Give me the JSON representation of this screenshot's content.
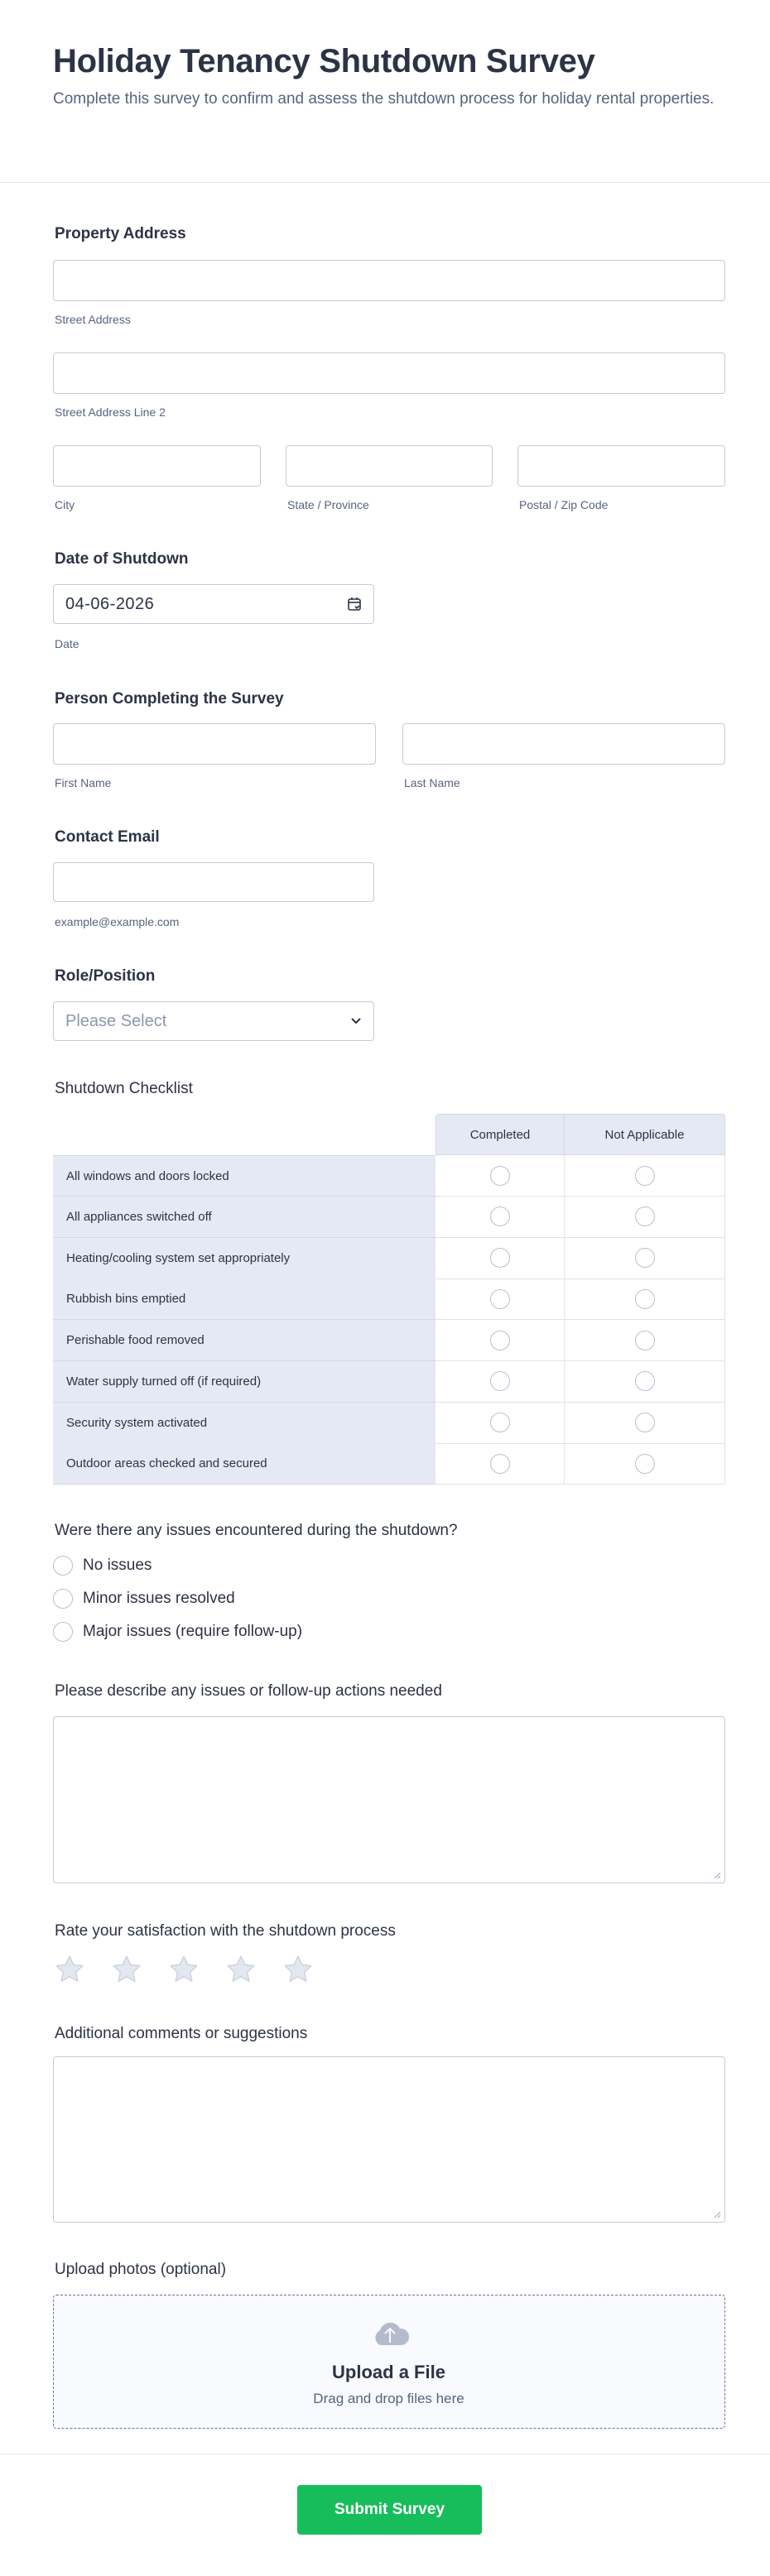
{
  "header": {
    "title": "Holiday Tenancy Shutdown Survey",
    "description": "Complete this survey to confirm and assess the shutdown process for holiday rental properties."
  },
  "address": {
    "label": "Property Address",
    "street": {
      "value": "",
      "sublabel": "Street Address"
    },
    "street2": {
      "value": "",
      "sublabel": "Street Address Line 2"
    },
    "city": {
      "value": "",
      "sublabel": "City"
    },
    "state": {
      "value": "",
      "sublabel": "State / Province"
    },
    "postal": {
      "value": "",
      "sublabel": "Postal / Zip Code"
    }
  },
  "date": {
    "label": "Date of Shutdown",
    "value": "04-06-2026",
    "sublabel": "Date",
    "icon": "calendar-icon"
  },
  "person": {
    "label": "Person Completing the Survey",
    "first": {
      "value": "",
      "sublabel": "First Name"
    },
    "last": {
      "value": "",
      "sublabel": "Last Name"
    }
  },
  "email": {
    "label": "Contact Email",
    "value": "",
    "sublabel": "example@example.com"
  },
  "role": {
    "label": "Role/Position",
    "placeholder": "Please Select",
    "icon": "chevron-down-icon"
  },
  "checklist": {
    "label": "Shutdown Checklist",
    "columns": [
      "Completed",
      "Not Applicable"
    ],
    "rows": [
      "All windows and doors locked",
      "All appliances switched off",
      "Heating/cooling system set appropriately",
      "Rubbish bins emptied",
      "Perishable food removed",
      "Water supply turned off (if required)",
      "Security system activated",
      "Outdoor areas checked and secured"
    ]
  },
  "issues": {
    "label": "Were there any issues encountered during the shutdown?",
    "options": [
      "No issues",
      "Minor issues resolved",
      "Major issues (require follow-up)"
    ]
  },
  "describe": {
    "label": "Please describe any issues or follow-up actions needed",
    "value": ""
  },
  "rating": {
    "label": "Rate your satisfaction with the shutdown process",
    "max": 5,
    "value": 0
  },
  "comments": {
    "label": "Additional comments or suggestions",
    "value": ""
  },
  "upload": {
    "label": "Upload photos (optional)",
    "title": "Upload a File",
    "hint": "Drag and drop files here",
    "icon": "cloud-upload-icon"
  },
  "submit": {
    "label": "Submit Survey"
  },
  "colors": {
    "accent": "#18bd5b",
    "text": "#2c3345",
    "sublabel": "#57647e",
    "border": "#c3cad8",
    "table_header": "#e5e9f3"
  }
}
